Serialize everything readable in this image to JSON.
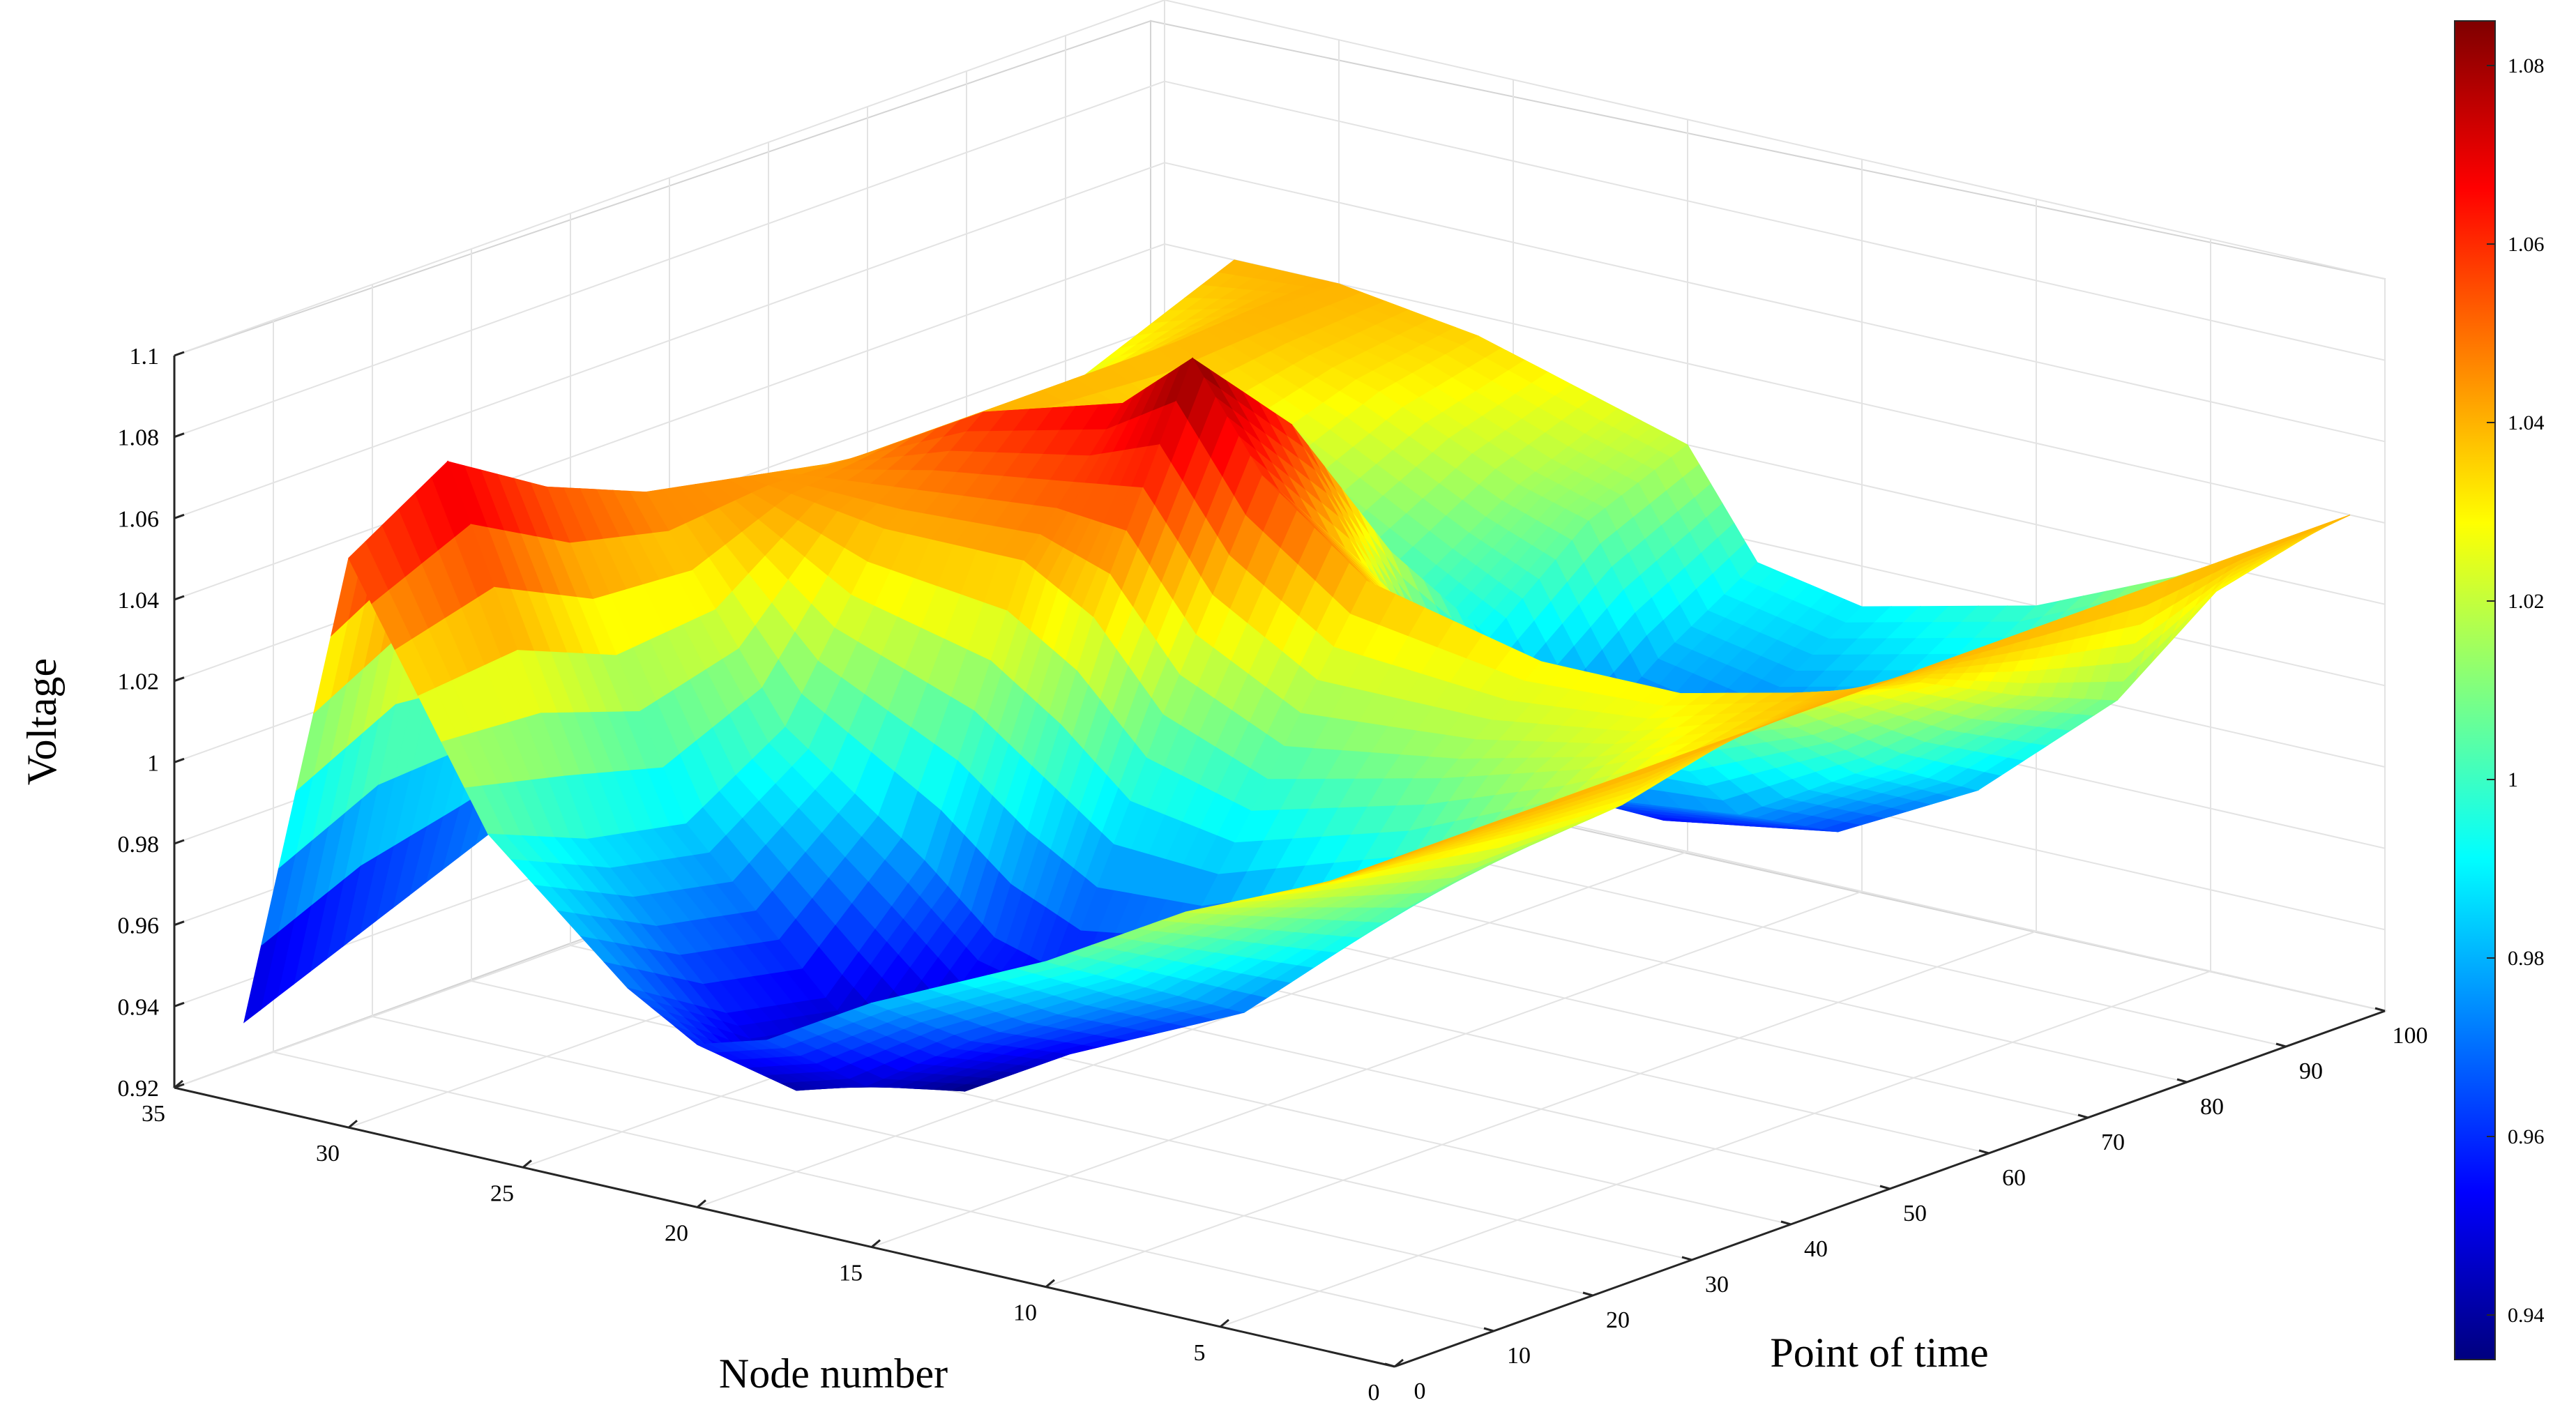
{
  "chart_data": {
    "type": "surface",
    "title": "",
    "xlabel": "Point of time",
    "ylabel": "Node number",
    "zlabel": "Voltage",
    "xlim": [
      0,
      100
    ],
    "ylim": [
      0,
      35
    ],
    "zlim": [
      0.92,
      1.1
    ],
    "x_ticks": [
      "0",
      "10",
      "20",
      "30",
      "40",
      "50",
      "60",
      "70",
      "80",
      "90",
      "100"
    ],
    "y_ticks": [
      "0",
      "5",
      "10",
      "15",
      "20",
      "25",
      "30",
      "35"
    ],
    "z_ticks": [
      "0.92",
      "0.94",
      "0.96",
      "0.98",
      "1",
      "1.02",
      "1.04",
      "1.06",
      "1.08",
      "1.1"
    ],
    "grid": true,
    "colormap": "jet",
    "colorbar": {
      "range": [
        0.935,
        1.085
      ],
      "ticks": [
        "0.94",
        "0.96",
        "0.98",
        "1",
        "1.02",
        "1.04",
        "1.06",
        "1.08"
      ]
    },
    "surface": {
      "time_points": [
        0,
        10,
        20,
        30,
        40,
        50,
        60,
        70,
        80,
        90,
        100
      ],
      "node_profiles": [
        {
          "node": 1,
          "voltage": [
            1.04,
            1.04,
            1.04,
            1.04,
            1.04,
            1.04,
            1.04,
            1.04,
            1.04,
            1.04,
            1.04
          ]
        },
        {
          "node": 2,
          "voltage": [
            1.035,
            1.033,
            1.03,
            1.028,
            1.034,
            1.038,
            1.032,
            1.02,
            1.01,
            1.028,
            1.034
          ]
        },
        {
          "node": 6,
          "voltage": [
            1.02,
            1.01,
            1.0,
            1.005,
            1.02,
            1.03,
            1.015,
            0.995,
            0.98,
            1.005,
            1.015
          ]
        },
        {
          "node": 10,
          "voltage": [
            1.0,
            0.985,
            0.97,
            0.98,
            1.01,
            1.03,
            1.005,
            0.975,
            0.962,
            0.985,
            1.0
          ]
        },
        {
          "node": 15,
          "voltage": [
            0.98,
            0.962,
            0.95,
            0.962,
            1.0,
            1.04,
            1.01,
            0.97,
            0.955,
            0.975,
            0.99
          ]
        },
        {
          "node": 18,
          "voltage": [
            0.965,
            0.945,
            0.935,
            0.955,
            1.01,
            1.06,
            1.03,
            0.985,
            0.962,
            0.98,
            0.995
          ]
        },
        {
          "node": 20,
          "voltage": [
            0.96,
            0.94,
            0.935,
            0.96,
            1.03,
            1.085,
            1.06,
            1.02,
            0.99,
            1.01,
            1.02
          ]
        },
        {
          "node": 22,
          "voltage": [
            0.97,
            0.955,
            0.95,
            0.975,
            1.04,
            1.07,
            1.05,
            1.02,
            1.0,
            1.015,
            1.025
          ]
        },
        {
          "node": 26,
          "voltage": [
            1.0,
            0.99,
            0.985,
            1.0,
            1.04,
            1.06,
            1.045,
            1.03,
            1.02,
            1.03,
            1.035
          ]
        },
        {
          "node": 30,
          "voltage": [
            1.06,
            1.075,
            1.06,
            1.05,
            1.045,
            1.04,
            1.04,
            1.04,
            1.04,
            1.04,
            1.04
          ]
        },
        {
          "node": 33,
          "voltage": [
            0.94,
            0.95,
            0.96,
            0.97,
            0.99,
            1.0,
            1.0,
            1.01,
            1.02,
            1.03,
            1.04
          ]
        }
      ]
    }
  }
}
